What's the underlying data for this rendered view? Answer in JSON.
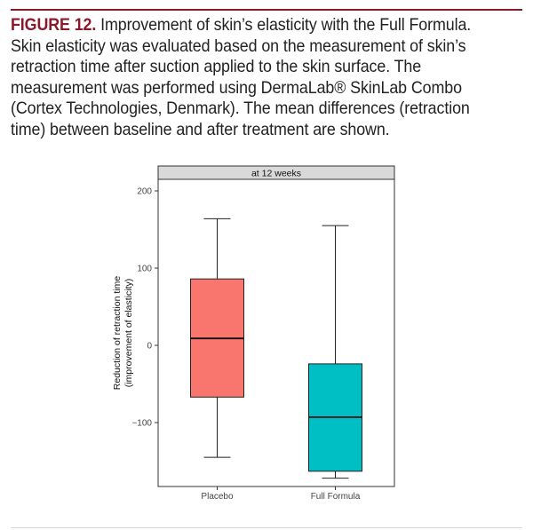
{
  "figure": {
    "label": "FIGURE 12.",
    "caption": " Improvement of skin’s elasticity with the Full Formula. Skin elasticity was evaluated based on the measurement of skin’s retraction time after suction applied to the skin surface. The measurement was performed using DermaLab® SkinLab Combo (Cortex Technologies, Denmark). The mean differences (retraction time) between baseline and after treatment are shown."
  },
  "colors": {
    "accent": "#8a1a2b",
    "placebo": "#f8766d",
    "full_formula": "#00bfc4"
  },
  "chart_data": {
    "type": "box",
    "facet_label": "at 12 weeks",
    "ylabel_lines": [
      "Reduction of retraction time",
      "(improvement of elasticity)"
    ],
    "xlabel": "",
    "ylim": [
      -185,
      200
    ],
    "y_ticks": [
      -100,
      0,
      100,
      200
    ],
    "y_tick_labels": [
      "−100",
      "0",
      "100",
      "200"
    ],
    "grid": false,
    "legend": "none",
    "categories": [
      "Placebo",
      "Full Formula"
    ],
    "boxes": [
      {
        "name": "Placebo",
        "whisker_low": -145,
        "q1": -67,
        "median": 9,
        "q3": 86,
        "whisker_high": 164
      },
      {
        "name": "Full Formula",
        "whisker_low": -172,
        "q1": -163,
        "median": -93,
        "q3": -24,
        "whisker_high": 155
      }
    ]
  }
}
